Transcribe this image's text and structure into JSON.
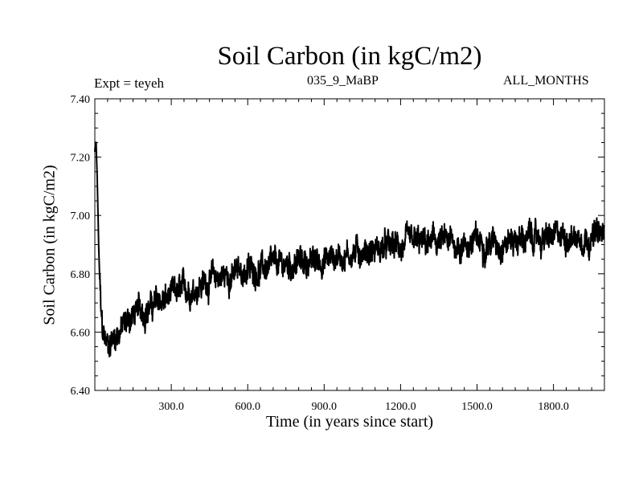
{
  "chart_data": {
    "type": "line",
    "title": "Soil Carbon (in kgC/m2)",
    "subtitle_left": "Expt = teyeh",
    "subtitle_center": "035_9_MaBP",
    "subtitle_right": "ALL_MONTHS",
    "xlabel": "Time (in years since start)",
    "ylabel": "Soil Carbon (in kgC/m2)",
    "xlim": [
      0,
      2000
    ],
    "ylim": [
      6.4,
      7.4
    ],
    "xticks": [
      300,
      600,
      900,
      1200,
      1500,
      1800
    ],
    "xtick_labels": [
      "300.0",
      "600.0",
      "900.0",
      "1200.0",
      "1500.0",
      "1800.0"
    ],
    "yticks": [
      6.4,
      6.6,
      6.8,
      7.0,
      7.2,
      7.4
    ],
    "ytick_labels": [
      "6.40",
      "6.60",
      "6.80",
      "7.00",
      "7.20",
      "7.40"
    ],
    "grid": false,
    "series": [
      {
        "name": "Soil Carbon",
        "color": "#000000",
        "x": [
          0,
          5,
          10,
          15,
          20,
          25,
          30,
          40,
          50,
          60,
          80,
          100,
          120,
          150,
          200,
          250,
          300,
          350,
          400,
          450,
          500,
          550,
          600,
          650,
          700,
          750,
          800,
          850,
          900,
          950,
          1000,
          1050,
          1100,
          1150,
          1200,
          1250,
          1300,
          1350,
          1400,
          1450,
          1500,
          1550,
          1600,
          1650,
          1700,
          1750,
          1800,
          1850,
          1900,
          1950,
          2000
        ],
        "y": [
          7.22,
          7.25,
          7.1,
          6.9,
          6.75,
          6.65,
          6.6,
          6.57,
          6.56,
          6.57,
          6.59,
          6.61,
          6.63,
          6.66,
          6.68,
          6.7,
          6.72,
          6.74,
          6.76,
          6.78,
          6.79,
          6.8,
          6.81,
          6.82,
          6.82,
          6.83,
          6.84,
          6.84,
          6.85,
          6.86,
          6.87,
          6.88,
          6.88,
          6.89,
          6.89,
          6.9,
          6.9,
          6.91,
          6.9,
          6.9,
          6.91,
          6.91,
          6.91,
          6.92,
          6.92,
          6.92,
          6.92,
          6.93,
          6.93,
          6.93,
          6.93
        ],
        "noise_amplitude": 0.05
      }
    ]
  }
}
